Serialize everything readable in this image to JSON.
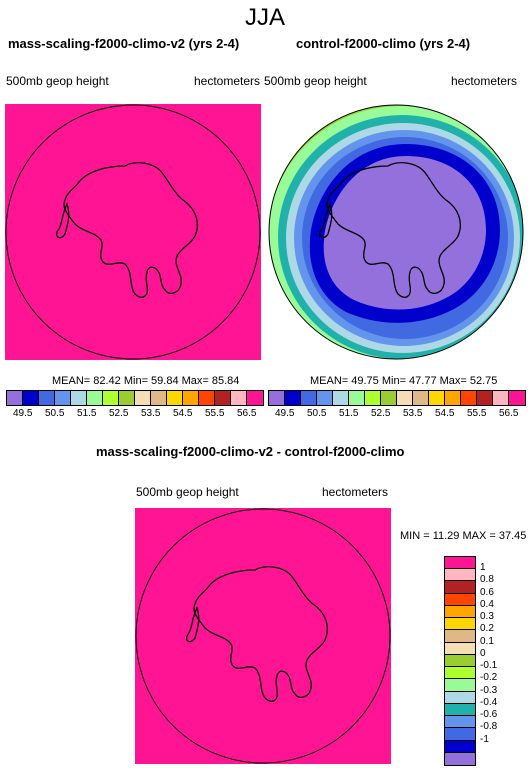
{
  "main_title": "JJA",
  "panels": {
    "left": {
      "title": "mass-scaling-f2000-climo-v2 (yrs 2-4)",
      "variable": "500mb geop height",
      "units": "hectometers",
      "stats": "MEAN=  82.42  Min=  59.84  Max=  85.84"
    },
    "right": {
      "title": "control-f2000-climo (yrs 2-4)",
      "variable": "500mb geop height",
      "units": "hectometers",
      "stats": "MEAN=  49.75  Min=  47.77  Max=  52.75"
    },
    "diff": {
      "title": "mass-scaling-f2000-climo-v2 - control-f2000-climo",
      "variable": "500mb geop height",
      "units": "hectometers",
      "stats": "MIN =  11.29 MAX =  37.45"
    }
  },
  "colorbar_main": {
    "colors": [
      "#9370db",
      "#0000cd",
      "#4169e1",
      "#6495ed",
      "#add8e6",
      "#98fb98",
      "#adff2f",
      "#9acd32",
      "#f5deb3",
      "#deb887",
      "#ffd700",
      "#ffa500",
      "#ff4500",
      "#b22222",
      "#ffb6c1",
      "#ff1493"
    ],
    "labels": [
      "49.5",
      "50.5",
      "51.5",
      "52.5",
      "53.5",
      "54.5",
      "55.5",
      "56.5"
    ]
  },
  "colorbar_diff": {
    "colors": [
      "#ff1493",
      "#ffb6c1",
      "#b22222",
      "#ff4500",
      "#ffa500",
      "#ffd700",
      "#deb887",
      "#f5deb3",
      "#9acd32",
      "#adff2f",
      "#98fb98",
      "#add8e6",
      "#20b2aa",
      "#6495ed",
      "#4169e1",
      "#0000cd",
      "#9370db"
    ],
    "labels": [
      "1",
      "0.8",
      "0.6",
      "0.4",
      "0.3",
      "0.2",
      "0.1",
      "0",
      "-0.1",
      "-0.2",
      "-0.3",
      "-0.4",
      "-0.6",
      "-0.8",
      "-1"
    ]
  },
  "colors": {
    "uniform_fill": "#ff1493",
    "control_inner": "#9370db",
    "control_band1": "#0000cd",
    "control_band2": "#4169e1",
    "control_band3": "#6495ed",
    "control_band4": "#add8e6",
    "control_band5": "#20b2aa",
    "control_band6": "#98fb98",
    "control_band7": "#9acd32"
  }
}
